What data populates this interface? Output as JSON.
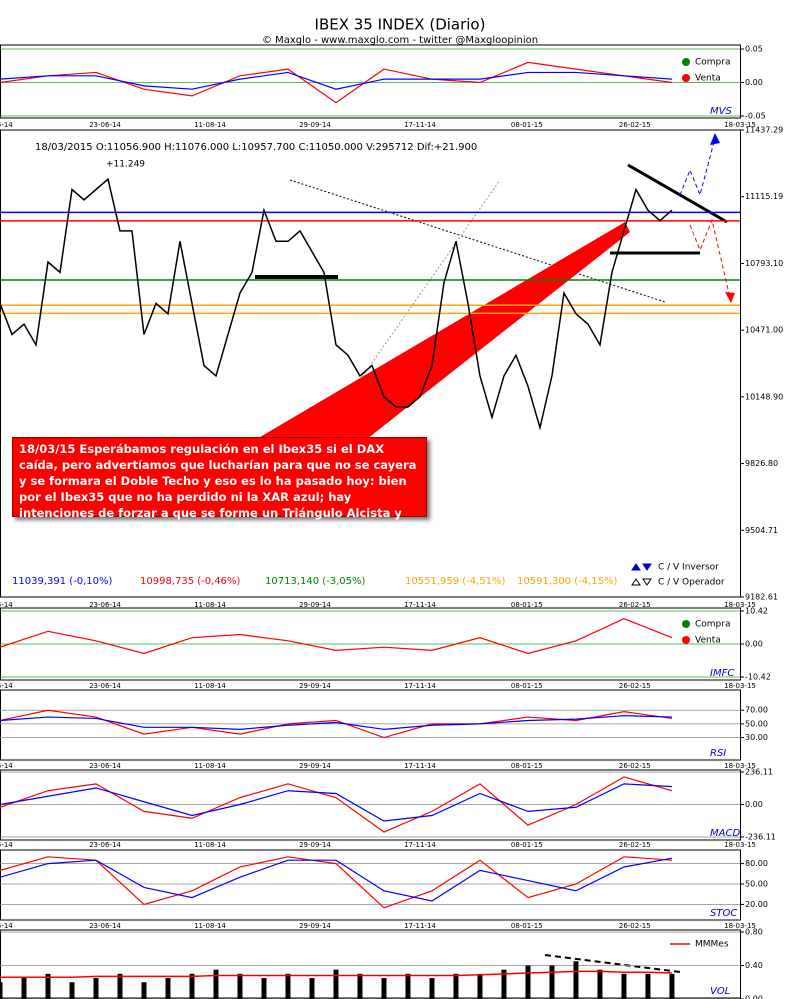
{
  "chart_data": [
    {
      "type": "line",
      "title": "IBEX 35 INDEX (Diario)",
      "subtitle": "© Maxglo - www.maxglo.com - twitter @Maxgloopinion",
      "header": "18/03/2015  O:11056.900  H:11076.000  L:10957.700  C:11050.000  V:295712  Dif:+21.900",
      "peak_label": "+11.249",
      "annotation": "18/03/15  Esperábamos regulación en el Ibex35 si el DAX caída, pero advertíamos que lucharían para que no se cayera y se formara el Doble Techo y eso es lo ha pasado hoy: bien por el Ibex35 que no ha perdido ni la XAR azul; hay intenciones de forzar a que se forme un Triángulo Alcista y sea perforado al alza. Lea Bono EEUU y Dow Jones.",
      "x": [
        0,
        1,
        2,
        3,
        4,
        5,
        6,
        7,
        8,
        9,
        10,
        11,
        12,
        13,
        14,
        15,
        16,
        17,
        18,
        19,
        20,
        21,
        22,
        23,
        24,
        25,
        26,
        27,
        28,
        29,
        30,
        31,
        32,
        33,
        34,
        35,
        36,
        37,
        38,
        39,
        40,
        41,
        42,
        43,
        44,
        45,
        46,
        47,
        48,
        49,
        50,
        51,
        52,
        53,
        54,
        55,
        56
      ],
      "series": [
        {
          "color": "#000000",
          "values": [
            10600,
            10450,
            10500,
            10400,
            10800,
            10750,
            11150,
            11100,
            11150,
            11200,
            10950,
            10950,
            10450,
            10600,
            10550,
            10900,
            10600,
            10300,
            10250,
            10450,
            10650,
            10750,
            11050,
            10900,
            10900,
            10950,
            10850,
            10750,
            10400,
            10350,
            10250,
            10300,
            10150,
            10100,
            10100,
            10150,
            10300,
            10700,
            10900,
            10600,
            10250,
            10050,
            10250,
            10350,
            10200,
            10000,
            10250,
            10650,
            10550,
            10500,
            10400,
            10750,
            10950,
            11150,
            11050,
            11000,
            11050
          ]
        }
      ],
      "hlines": [
        {
          "value": 11039.391,
          "label": "11039,391 (-0,10%)",
          "color": "#0000ff"
        },
        {
          "value": 10998.735,
          "label": "10998,735 (-0,46%)",
          "color": "#ff0000"
        },
        {
          "value": 10713.14,
          "label": "10713,140 (-3,05%)",
          "color": "#008000"
        },
        {
          "value": 10551.959,
          "label": "10551,959 (-4,51%)",
          "color": "#ffa500"
        },
        {
          "value": 10591.3,
          "label": "10591,300 (-4,15%)",
          "color": "#ffa500"
        }
      ],
      "markers_legend": [
        {
          "name": "C / V Inversor",
          "color": "#0000cc",
          "filled": true
        },
        {
          "name": "C / V Operador",
          "color": "#000000",
          "filled": false
        }
      ],
      "xlim": [
        0,
        61.67
      ],
      "xticks": [
        {
          "value": 0.4,
          "label": "5-14"
        },
        {
          "value": 8.75,
          "label": "23-06-14"
        },
        {
          "value": 17.5,
          "label": "11-08-14"
        },
        {
          "value": 26.25,
          "label": "29-09-14"
        },
        {
          "value": 35,
          "label": "17-11-14"
        },
        {
          "value": 43.9,
          "label": "08-01-15"
        },
        {
          "value": 52.9,
          "label": "26-02-15"
        },
        {
          "value": 61.67,
          "label": "18-03-15"
        }
      ],
      "ylim": [
        9182.61,
        11437.29
      ],
      "yticks": [
        11437.29,
        11115.19,
        {
          "value": 10793.1,
          "label": "10793.10"
        },
        {
          "value": 10471,
          "label": "10471.00"
        },
        {
          "value": 10148.9,
          "label": "10148.90"
        },
        {
          "value": 9826.8,
          "label": "9826.80"
        },
        9504.71,
        9182.61
      ]
    },
    {
      "type": "line",
      "label": "MVS",
      "legend": [
        {
          "name": "Compra",
          "color": "#008000"
        },
        {
          "name": "Venta",
          "color": "#ff0000"
        }
      ],
      "x": [
        0,
        4,
        8,
        12,
        16,
        20,
        24,
        28,
        32,
        36,
        40,
        44,
        48,
        52,
        56
      ],
      "series": [
        {
          "color": "#ff0000",
          "values": [
            0,
            0.01,
            0.015,
            -0.01,
            -0.02,
            0.01,
            0.02,
            -0.03,
            0.02,
            0.005,
            0,
            0.03,
            0.02,
            0.01,
            0
          ]
        },
        {
          "color": "#0000ff",
          "values": [
            0.005,
            0.01,
            0.01,
            -0.005,
            -0.01,
            0.005,
            0.015,
            -0.01,
            0.005,
            0.005,
            0.005,
            0.015,
            0.015,
            0.01,
            0.005
          ]
        }
      ],
      "ylim": [
        -0.05,
        0.05
      ],
      "yticks": [
        0.05,
        {
          "value": 0,
          "label": "0.00"
        },
        -0.05
      ]
    },
    {
      "type": "line",
      "label": "IMFC",
      "legend": [
        {
          "name": "Compra",
          "color": "#008000"
        },
        {
          "name": "Venta",
          "color": "#ff0000"
        }
      ],
      "x": [
        0,
        4,
        8,
        12,
        16,
        20,
        24,
        28,
        32,
        36,
        40,
        44,
        48,
        52,
        56
      ],
      "series": [
        {
          "color": "#ff0000",
          "values": [
            -1,
            4,
            1,
            -3,
            2,
            3,
            1,
            -2,
            -1,
            -2,
            2,
            -3,
            1,
            8,
            2
          ]
        }
      ],
      "ylim": [
        -10.42,
        10.42
      ],
      "yticks": [
        10.42,
        {
          "value": 0,
          "label": "0.00"
        },
        -10.42
      ]
    },
    {
      "type": "line",
      "label": "RSI",
      "x": [
        0,
        4,
        8,
        12,
        16,
        20,
        24,
        28,
        32,
        36,
        40,
        44,
        48,
        52,
        56
      ],
      "series": [
        {
          "color": "#ff0000",
          "values": [
            55,
            70,
            60,
            35,
            45,
            35,
            50,
            55,
            30,
            50,
            50,
            60,
            55,
            68,
            58
          ]
        },
        {
          "color": "#0000ff",
          "values": [
            55,
            60,
            58,
            45,
            45,
            42,
            48,
            52,
            42,
            48,
            50,
            55,
            57,
            62,
            60
          ]
        }
      ],
      "ylim": [
        0,
        85
      ],
      "yticks": [
        {
          "value": 70,
          "label": "70.00"
        },
        {
          "value": 50,
          "label": "50.00"
        },
        {
          "value": 30,
          "label": "30.00"
        }
      ]
    },
    {
      "type": "line",
      "label": "MACD",
      "x": [
        0,
        4,
        8,
        12,
        16,
        20,
        24,
        28,
        32,
        36,
        40,
        44,
        48,
        52,
        56
      ],
      "series": [
        {
          "color": "#ff0000",
          "values": [
            -20,
            100,
            150,
            -50,
            -100,
            50,
            150,
            50,
            -200,
            -50,
            150,
            -150,
            0,
            200,
            100
          ]
        },
        {
          "color": "#0000ff",
          "values": [
            0,
            60,
            120,
            20,
            -80,
            0,
            100,
            80,
            -120,
            -80,
            80,
            -50,
            -20,
            150,
            130
          ]
        }
      ],
      "ylim": [
        -236.11,
        236.11
      ],
      "yticks": [
        236.11,
        {
          "value": 0,
          "label": "0.00"
        },
        -236.11
      ]
    },
    {
      "type": "line",
      "label": "STOC",
      "x": [
        0,
        4,
        8,
        12,
        16,
        20,
        24,
        28,
        32,
        36,
        40,
        44,
        48,
        52,
        56
      ],
      "series": [
        {
          "color": "#ff0000",
          "values": [
            70,
            90,
            85,
            20,
            40,
            75,
            90,
            80,
            15,
            40,
            85,
            30,
            50,
            90,
            85
          ]
        },
        {
          "color": "#0000ff",
          "values": [
            60,
            80,
            85,
            45,
            30,
            60,
            85,
            85,
            40,
            25,
            70,
            55,
            40,
            75,
            88
          ]
        }
      ],
      "ylim": [
        0,
        100
      ],
      "yticks": [
        {
          "value": 80,
          "label": "80.00"
        },
        {
          "value": 50,
          "label": "50.00"
        },
        {
          "value": 20,
          "label": "20.00"
        }
      ]
    },
    {
      "type": "bar",
      "label": "VOL",
      "x": [
        0,
        2,
        4,
        6,
        8,
        10,
        12,
        14,
        16,
        18,
        20,
        22,
        24,
        26,
        28,
        30,
        32,
        34,
        36,
        38,
        40,
        42,
        44,
        46,
        48,
        50,
        52,
        54,
        56
      ],
      "values": [
        0.2,
        0.25,
        0.3,
        0.2,
        0.25,
        0.3,
        0.2,
        0.25,
        0.3,
        0.35,
        0.3,
        0.25,
        0.3,
        0.25,
        0.35,
        0.3,
        0.25,
        0.3,
        0.25,
        0.3,
        0.3,
        0.35,
        0.4,
        0.4,
        0.45,
        0.35,
        0.3,
        0.3,
        0.3
      ],
      "color": "#000000",
      "line": {
        "name": "MMMes",
        "color": "#ff0000",
        "values": [
          0.26,
          0.26,
          0.26,
          0.26,
          0.27,
          0.27,
          0.27,
          0.27,
          0.27,
          0.28,
          0.28,
          0.28,
          0.28,
          0.28,
          0.28,
          0.28,
          0.28,
          0.28,
          0.28,
          0.28,
          0.29,
          0.3,
          0.31,
          0.32,
          0.33,
          0.33,
          0.32,
          0.32,
          0.31
        ]
      },
      "ylim": [
        0,
        0.8
      ],
      "yticks": [
        {
          "value": 0.8,
          "label": "0.80"
        },
        {
          "value": 0.4,
          "label": "0.40"
        },
        {
          "value": 0,
          "label": "0.00"
        }
      ]
    }
  ]
}
